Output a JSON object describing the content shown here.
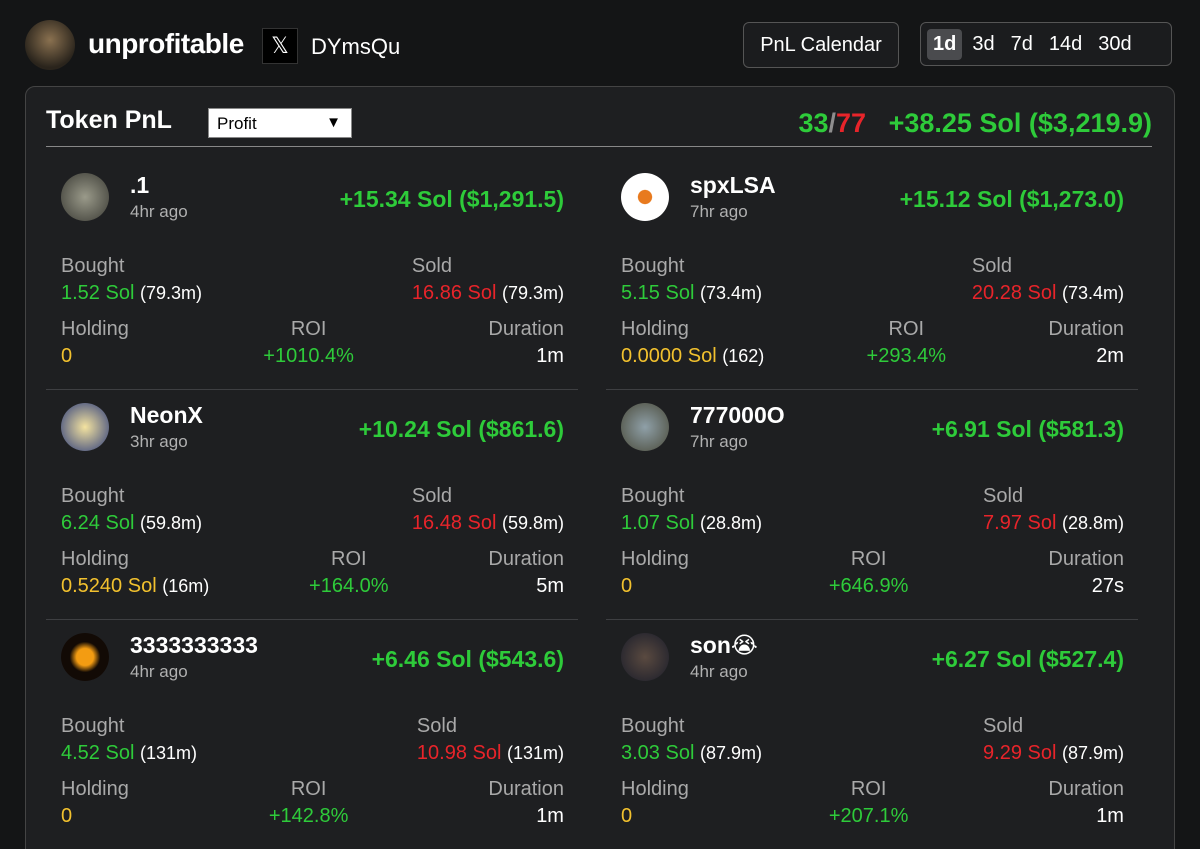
{
  "header": {
    "name": "unprofitable",
    "x_icon": "𝕏",
    "x_handle": "DYmsQu",
    "calendar_button": "PnL Calendar",
    "ranges": [
      "1d",
      "3d",
      "7d",
      "14d",
      "30d"
    ],
    "active_range": 0
  },
  "panel": {
    "title": "Token PnL",
    "sort": "Profit",
    "sort_arrow": "▼",
    "wins": 33,
    "separator": "/",
    "losses": 77,
    "total": "+38.25 Sol ($3,219.9)"
  },
  "labels": {
    "bought": "Bought",
    "sold": "Sold",
    "holding": "Holding",
    "roi": "ROI",
    "duration": "Duration"
  },
  "tokens": [
    {
      "name": ".1",
      "time": "4hr ago",
      "pnl": "+15.34 Sol ($1,291.5)",
      "bought": "1.52 Sol",
      "bought_mcap": "(79.3m)",
      "sold": "16.86 Sol",
      "sold_mcap": "(79.3m)",
      "holding": "0",
      "roi": "+1010.4%",
      "duration": "1m"
    },
    {
      "name": "spxLSA",
      "time": "7hr ago",
      "pnl": "+15.12 Sol ($1,273.0)",
      "bought": "5.15 Sol",
      "bought_mcap": "(73.4m)",
      "sold": "20.28 Sol",
      "sold_mcap": "(73.4m)",
      "holding": "0.0000 Sol",
      "holding_mcap": "(162)",
      "roi": "+293.4%",
      "duration": "2m"
    },
    {
      "name": "NeonX",
      "time": "3hr ago",
      "pnl": "+10.24 Sol ($861.6)",
      "bought": "6.24 Sol",
      "bought_mcap": "(59.8m)",
      "sold": "16.48 Sol",
      "sold_mcap": "(59.8m)",
      "holding": "0.5240 Sol",
      "holding_mcap": "(16m)",
      "roi": "+164.0%",
      "duration": "5m"
    },
    {
      "name": "777000O",
      "time": "7hr ago",
      "pnl": "+6.91 Sol ($581.3)",
      "bought": "1.07 Sol",
      "bought_mcap": "(28.8m)",
      "sold": "7.97 Sol",
      "sold_mcap": "(28.8m)",
      "holding": "0",
      "roi": "+646.9%",
      "duration": "27s"
    },
    {
      "name": "3333333333",
      "time": "4hr ago",
      "pnl": "+6.46 Sol ($543.6)",
      "bought": "4.52 Sol",
      "bought_mcap": "(131m)",
      "sold": "10.98 Sol",
      "sold_mcap": "(131m)",
      "holding": "0",
      "roi": "+142.8%",
      "duration": "1m"
    },
    {
      "name": "son😭",
      "time": "4hr ago",
      "pnl": "+6.27 Sol ($527.4)",
      "bought": "3.03 Sol",
      "bought_mcap": "(87.9m)",
      "sold": "9.29 Sol",
      "sold_mcap": "(87.9m)",
      "holding": "0",
      "roi": "+207.1%",
      "duration": "1m"
    }
  ]
}
